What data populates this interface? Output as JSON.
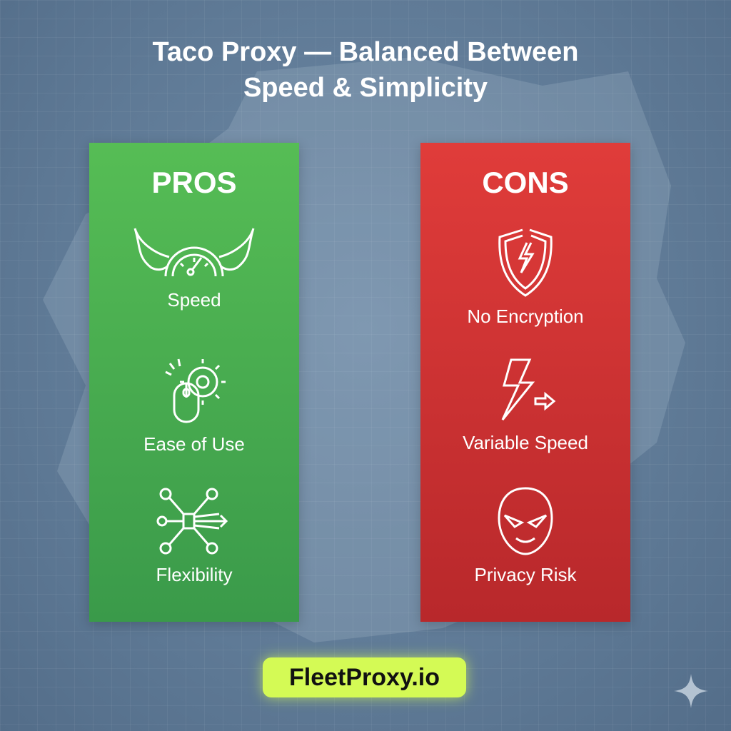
{
  "title_line1": "Taco Proxy — Balanced Between",
  "title_line2": "Speed & Simplicity",
  "pros": {
    "heading": "PROS",
    "color": "#4cb050",
    "items": [
      {
        "label": "Speed",
        "icon": "winged-speedometer-icon"
      },
      {
        "label": "Ease of Use",
        "icon": "mouse-gear-icon"
      },
      {
        "label": "Flexibility",
        "icon": "network-arrows-icon"
      }
    ]
  },
  "cons": {
    "heading": "CONS",
    "color": "#d43434",
    "items": [
      {
        "label": "No Encryption",
        "icon": "broken-shield-icon"
      },
      {
        "label": "Variable Speed",
        "icon": "lightning-arrow-icon"
      },
      {
        "label": "Privacy Risk",
        "icon": "masked-face-icon"
      }
    ]
  },
  "badge": {
    "label": "FleetProxy.io",
    "color": "#d4fa55"
  }
}
